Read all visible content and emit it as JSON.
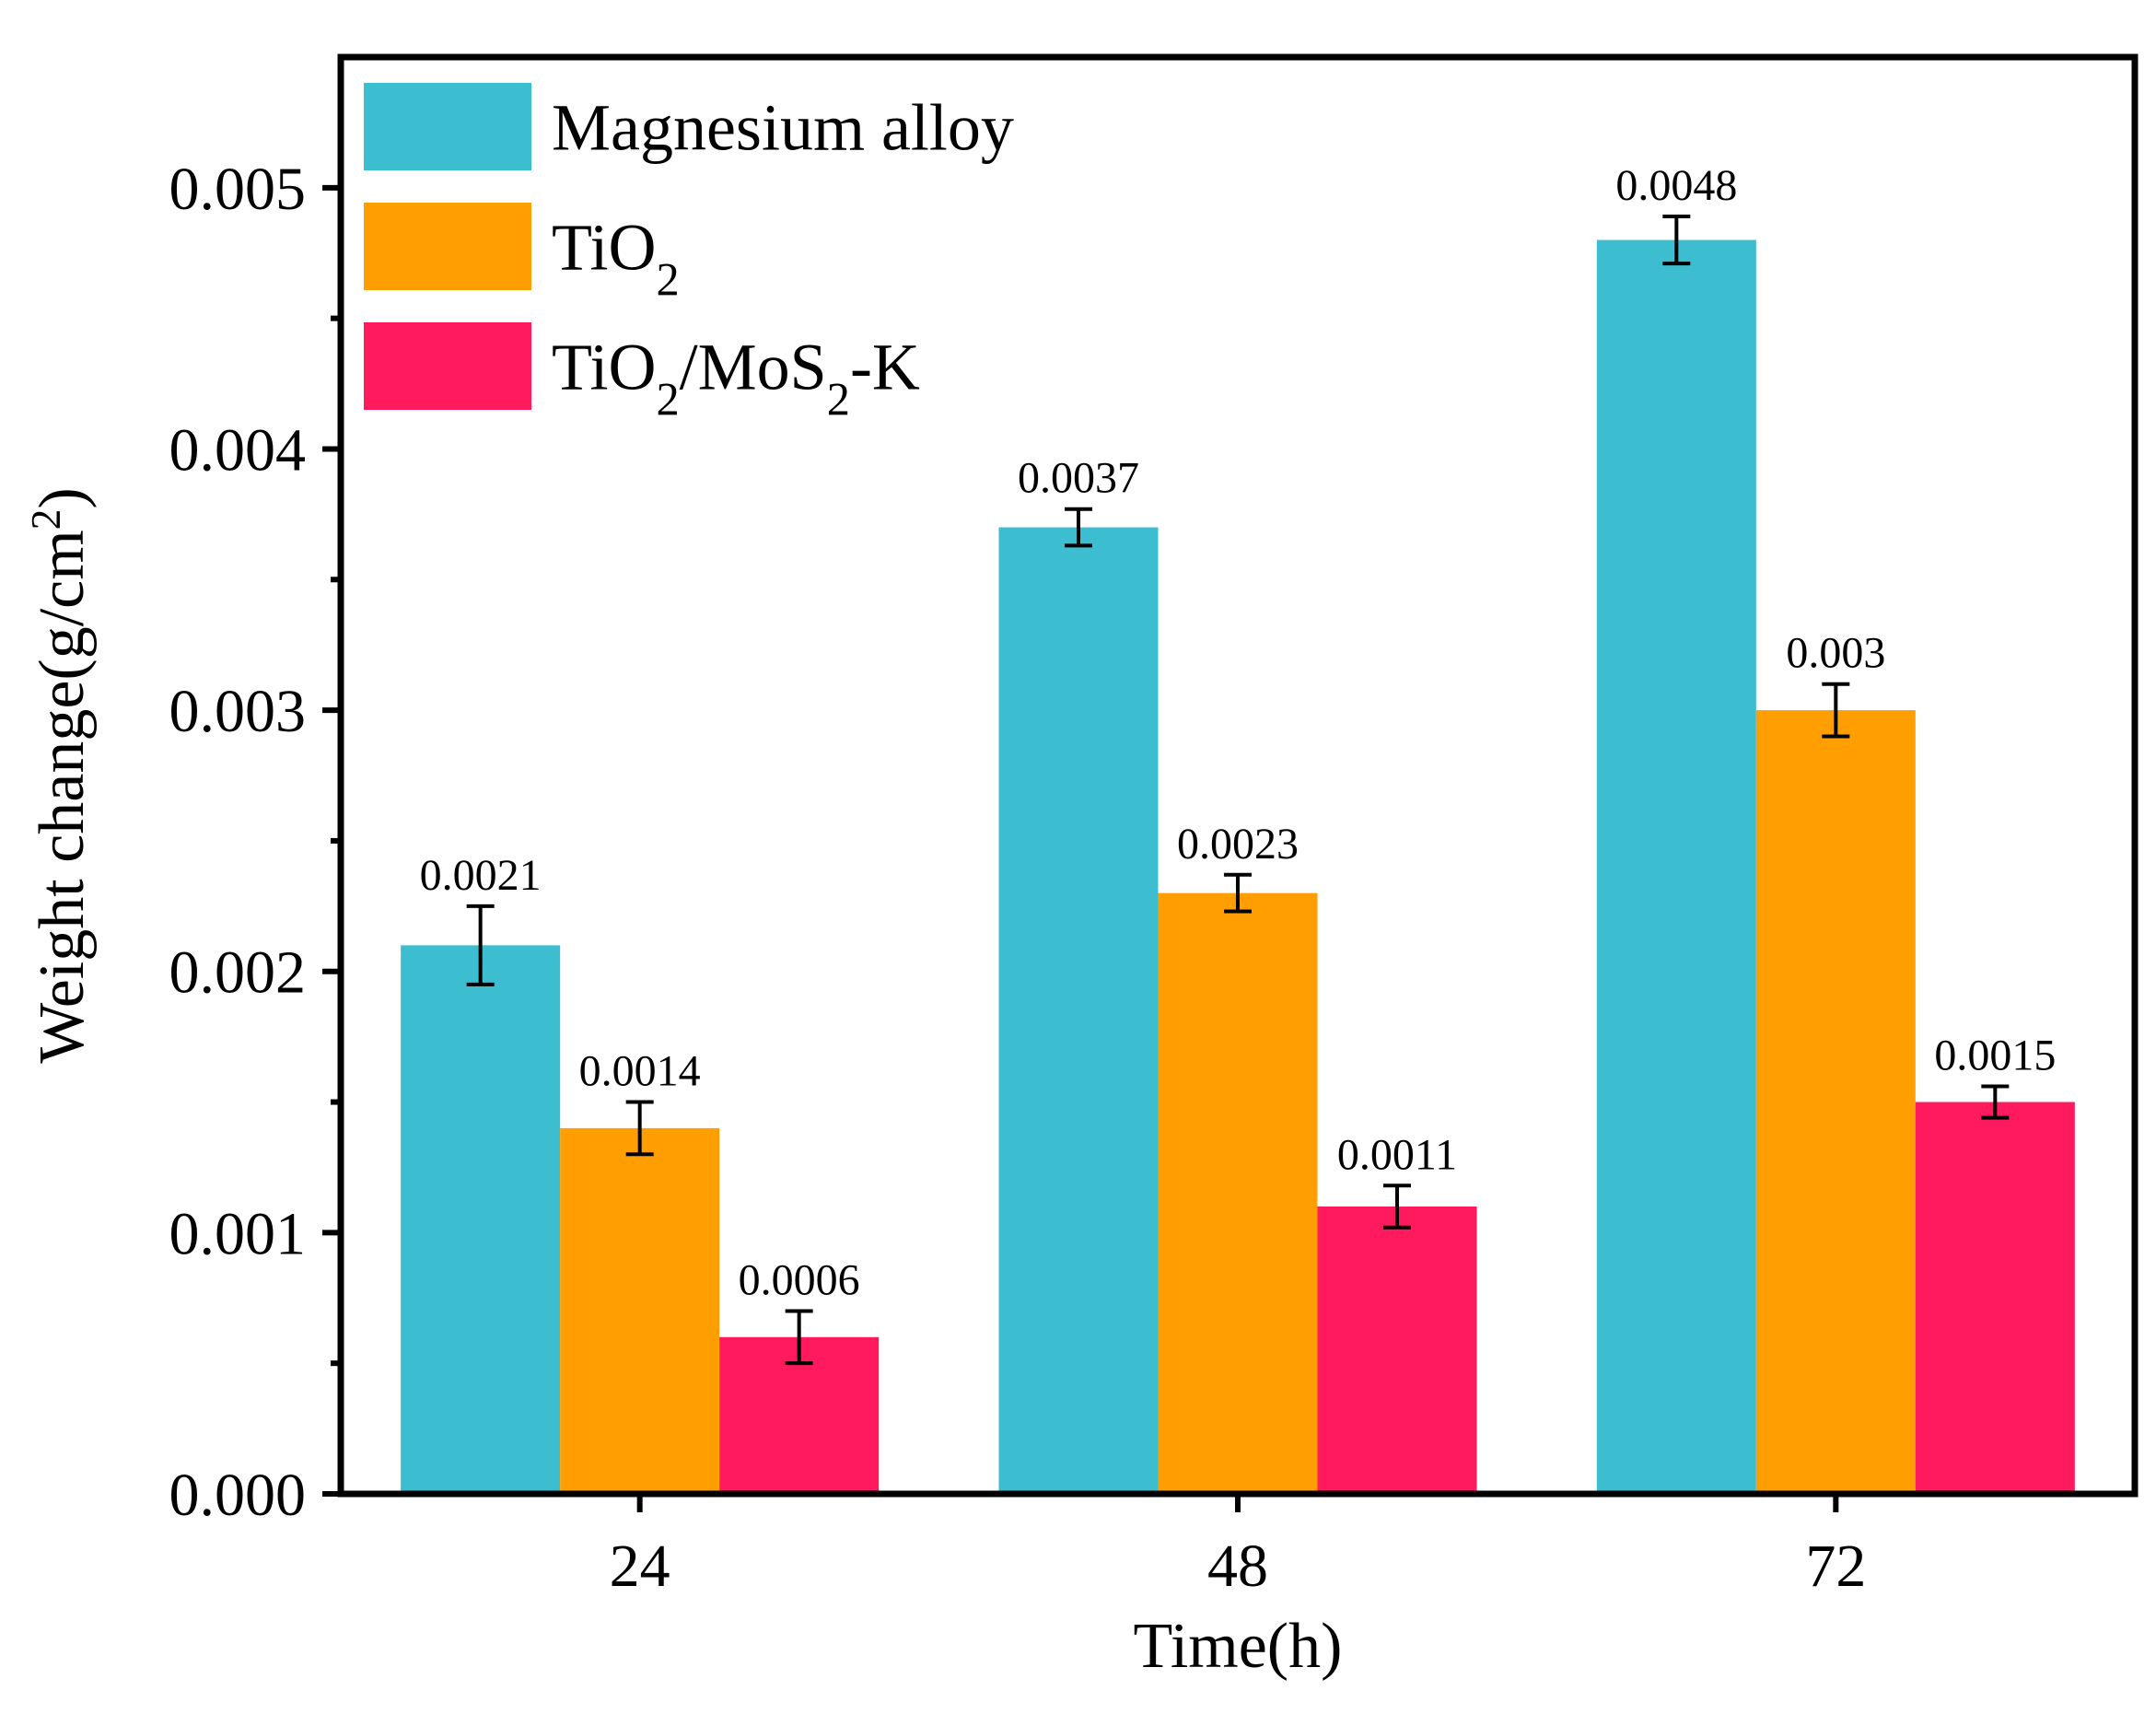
{
  "chart_data": {
    "type": "bar",
    "xlabel": "Time(h)",
    "ylabel": "Weight change(g/cm²)",
    "ylabel_parts": [
      {
        "text": "Weight change(g/cm"
      },
      {
        "text": "2",
        "sup": true
      },
      {
        "text": ")"
      }
    ],
    "categories": [
      "24",
      "48",
      "72"
    ],
    "ylim": [
      0,
      0.0055
    ],
    "yticks": [
      "0.000",
      "0.001",
      "0.002",
      "0.003",
      "0.004",
      "0.005"
    ],
    "ytick_values": [
      0,
      0.001,
      0.002,
      0.003,
      0.004,
      0.005
    ],
    "grid": false,
    "legend_position": "top-left",
    "series": [
      {
        "name": "Magnesium alloy",
        "name_parts": [
          {
            "text": "Magnesium alloy"
          }
        ],
        "color": "#3dbdd0",
        "values": [
          0.0021,
          0.0037,
          0.0048
        ],
        "errors": [
          0.00015,
          7e-05,
          9e-05
        ],
        "labels": [
          "0.0021",
          "0.0037",
          "0.0048"
        ]
      },
      {
        "name": "TiO₂",
        "name_parts": [
          {
            "text": "TiO"
          },
          {
            "text": "2",
            "sub": true
          }
        ],
        "color": "#ff9e00",
        "values": [
          0.0014,
          0.0023,
          0.003
        ],
        "errors": [
          0.0001,
          7e-05,
          0.0001
        ],
        "labels": [
          "0.0014",
          "0.0023",
          "0.003"
        ]
      },
      {
        "name": "TiO₂/MoS₂-K",
        "name_parts": [
          {
            "text": "TiO"
          },
          {
            "text": "2",
            "sub": true
          },
          {
            "text": "/MoS"
          },
          {
            "text": "2",
            "sub": true
          },
          {
            "text": "-K"
          }
        ],
        "color": "#ff1a5e",
        "values": [
          0.0006,
          0.0011,
          0.0015
        ],
        "errors": [
          0.0001,
          8e-05,
          6e-05
        ],
        "labels": [
          "0.0006",
          "0.0011",
          "0.0015"
        ]
      }
    ]
  }
}
